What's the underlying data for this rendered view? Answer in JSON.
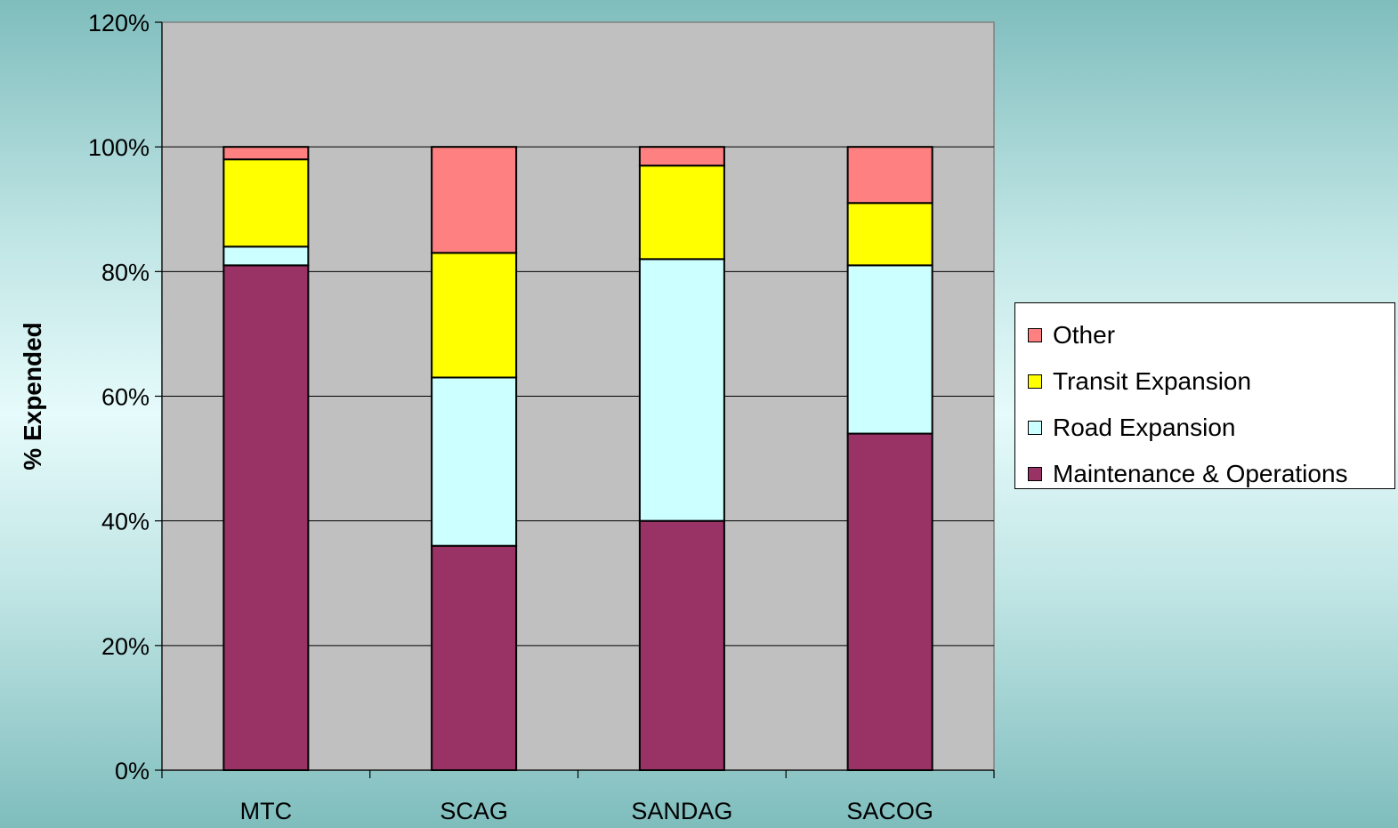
{
  "chart_data": {
    "type": "bar",
    "stacked": true,
    "categories": [
      "MTC",
      "SCAG",
      "SANDAG",
      "SACOG"
    ],
    "series": [
      {
        "name": "Maintenance & Operations",
        "color": "#993366",
        "values": [
          81,
          36,
          40,
          54
        ]
      },
      {
        "name": "Road Expansion",
        "color": "#ccffff",
        "values": [
          3,
          27,
          42,
          27
        ]
      },
      {
        "name": "Transit Expansion",
        "color": "#ffff00",
        "values": [
          14,
          20,
          15,
          10
        ]
      },
      {
        "name": "Other",
        "color": "#ff8080",
        "values": [
          2,
          17,
          3,
          9
        ]
      }
    ],
    "ylabel": "% Expended",
    "xlabel": "",
    "ylim": [
      0,
      120
    ],
    "yticks": [
      "0%",
      "20%",
      "40%",
      "60%",
      "80%",
      "100%",
      "120%"
    ],
    "grid": true,
    "plot_background": "#c0c0c0",
    "legend_position": "right",
    "legend_order": [
      "Other",
      "Transit Expansion",
      "Road Expansion",
      "Maintenance & Operations"
    ]
  }
}
